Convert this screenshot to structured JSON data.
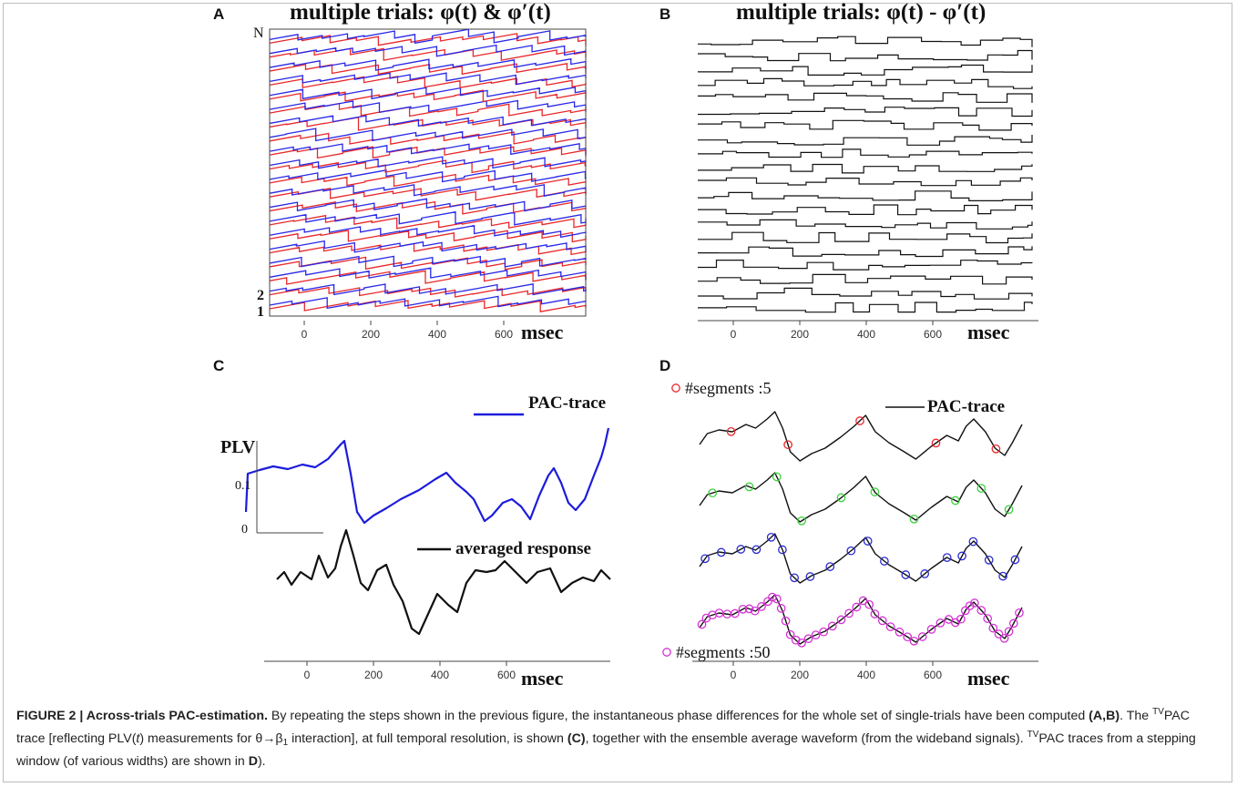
{
  "panels": {
    "A": {
      "letter": "A",
      "title": "multiple trials:  φ(t) & φ′(t)",
      "row_top_label": "N",
      "row_labels": [
        "2",
        "1"
      ],
      "xlabel": "msec",
      "ticks": [
        "0",
        "200",
        "400",
        "600"
      ]
    },
    "B": {
      "letter": "B",
      "title": "multiple trials:  φ(t) - φ′(t)",
      "xlabel": "msec",
      "ticks": [
        "0",
        "200",
        "400",
        "600"
      ]
    },
    "C": {
      "letter": "C",
      "legend_pac": "PAC-trace",
      "legend_avg": "averaged response",
      "ylabel": "PLV",
      "ytick_mid": "0.1",
      "ytick_zero": "0",
      "xlabel": "msec",
      "ticks": [
        "0",
        "200",
        "400",
        "600"
      ]
    },
    "D": {
      "letter": "D",
      "legend_seg5": "#segments :5",
      "legend_seg50": "#segments :50",
      "legend_pac": "PAC-trace",
      "xlabel": "msec",
      "ticks": [
        "0",
        "200",
        "400",
        "600"
      ]
    }
  },
  "colors": {
    "red": "#e8282a",
    "blue": "#2828e8",
    "pac_blue": "#1c1cdc",
    "green": "#3cd23c",
    "dark_blue": "#2a2ad0",
    "magenta": "#d632d6"
  },
  "caption": {
    "figure_label": "FIGURE 2 | Across-trials PAC-estimation.",
    "part1": " By repeating the steps shown in the previous figure, the instantaneous phase differences for the whole set of single-trials have been computed ",
    "ref_ab": "(A,B)",
    "part2": ". The ",
    "tv1": "TV",
    "part3": "PAC trace [reflecting PLV(",
    "t_italic": "t",
    "part4": ") measurements for θ→β",
    "sub1": "1",
    "part5": " interaction], at full temporal resolution, is shown ",
    "ref_c": "(C)",
    "part6": ", together with the ensemble average waveform (from the wideband signals). ",
    "tv2": "TV",
    "part7": "PAC traces from a stepping window (of various widths) are shown in ",
    "ref_d": "D",
    "part8": ")."
  }
}
